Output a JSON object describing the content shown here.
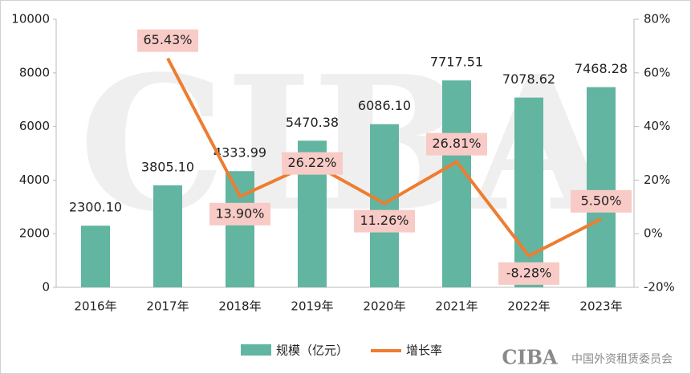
{
  "chart_data": {
    "type": "bar-line",
    "categories": [
      "2016年",
      "2017年",
      "2018年",
      "2019年",
      "2020年",
      "2021年",
      "2022年",
      "2023年"
    ],
    "series": [
      {
        "name": "规模（亿元）",
        "type": "bar",
        "color": "#62b5a0",
        "values": [
          2300.1,
          3805.1,
          4333.99,
          5470.38,
          6086.1,
          7717.51,
          7078.62,
          7468.28
        ],
        "value_labels": [
          "2300.10",
          "3805.10",
          "4333.99",
          "5470.38",
          "6086.10",
          "7717.51",
          "7078.62",
          "7468.28"
        ]
      },
      {
        "name": "增长率",
        "type": "line",
        "axis": "y2",
        "color": "#ed7d31",
        "values": [
          null,
          65.43,
          13.9,
          26.22,
          11.26,
          26.81,
          -8.28,
          5.5
        ],
        "value_labels": [
          null,
          "65.43%",
          "13.90%",
          "26.22%",
          "11.26%",
          "26.81%",
          "-8.28%",
          "5.50%"
        ]
      }
    ],
    "ylim": [
      0,
      10000
    ],
    "yticks": [
      0,
      2000,
      4000,
      6000,
      8000,
      10000
    ],
    "y2lim": [
      -20,
      80
    ],
    "y2ticks": [
      {
        "value": -20,
        "label": "-20%"
      },
      {
        "value": 0,
        "label": "0%"
      },
      {
        "value": 20,
        "label": "20%"
      },
      {
        "value": 40,
        "label": "40%"
      },
      {
        "value": 60,
        "label": "60%"
      },
      {
        "value": 80,
        "label": "80%"
      }
    ],
    "legend": "bottom",
    "logo": "CIBA",
    "source": "中国外资租赁委员会"
  }
}
